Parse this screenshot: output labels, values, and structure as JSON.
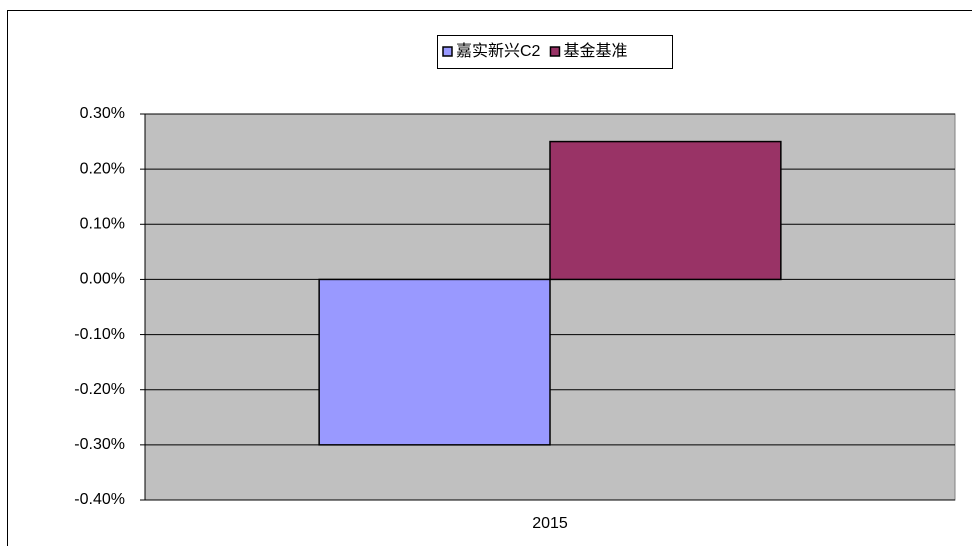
{
  "chart_data": {
    "type": "bar",
    "categories": [
      "2015"
    ],
    "series": [
      {
        "name": "嘉实新兴C2",
        "color": "#9999ff",
        "values": [
          -0.3
        ]
      },
      {
        "name": "基金基准",
        "color": "#993366",
        "values": [
          0.25
        ]
      }
    ],
    "ylim": [
      -0.4,
      0.3
    ],
    "yticks": [
      {
        "value": 0.3,
        "label": "0.30%"
      },
      {
        "value": 0.2,
        "label": "0.20%"
      },
      {
        "value": 0.1,
        "label": "0.10%"
      },
      {
        "value": 0,
        "label": "0.00%"
      },
      {
        "value": -0.1,
        "label": "-0.10%"
      },
      {
        "value": -0.2,
        "label": "-0.20%"
      },
      {
        "value": -0.3,
        "label": "-0.30%"
      },
      {
        "value": -0.4,
        "label": "-0.40%"
      }
    ],
    "grid": true,
    "legend": "top"
  }
}
